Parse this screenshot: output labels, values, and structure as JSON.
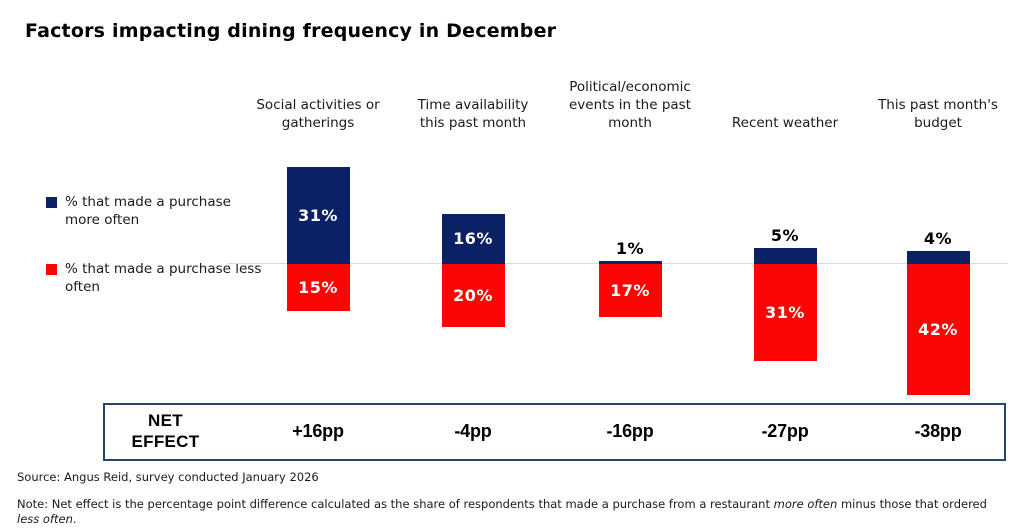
{
  "title": "Factors impacting dining frequency in December",
  "legend": [
    {
      "label": "% that made a purchase more often",
      "color": "#0a2166"
    },
    {
      "label": "% that made a purchase less often",
      "color": "#fe0505"
    }
  ],
  "chart_data": {
    "type": "bar",
    "subtype": "diverging-stacked",
    "title": "Factors impacting dining frequency in December",
    "categories": [
      "Social activities or gatherings",
      "Time availability this past month",
      "Political/economic events in the past month",
      "Recent weather",
      "This past month's budget"
    ],
    "series": [
      {
        "name": "% that made a purchase more often",
        "color": "#0a2166",
        "direction": "up",
        "values": [
          31,
          16,
          1,
          5,
          4
        ]
      },
      {
        "name": "% that made a purchase less often",
        "color": "#fe0505",
        "direction": "down",
        "values": [
          15,
          20,
          17,
          31,
          42
        ]
      }
    ],
    "value_suffix": "%",
    "axis": {
      "zero_line_color": "#d8d8d8",
      "gridlines": false,
      "value_axis_hidden": true
    },
    "legend_position": "left"
  },
  "net_effect": {
    "label_line1": "NET",
    "label_line2": "EFFECT",
    "values": [
      "+16pp",
      "-4pp",
      "-16pp",
      "-27pp",
      "-38pp"
    ],
    "border_color": "#24476b"
  },
  "footer": {
    "source": "Source: Angus Reid, survey conducted January 2026",
    "note_parts": [
      {
        "text": "Note: Net effect is the percentage point difference calculated as the share of respondents that made a purchase from a restaurant ",
        "italic": false
      },
      {
        "text": "more often",
        "italic": true
      },
      {
        "text": " minus those that ordered ",
        "italic": false
      },
      {
        "text": "less often",
        "italic": true
      },
      {
        "text": ".",
        "italic": false
      }
    ]
  }
}
